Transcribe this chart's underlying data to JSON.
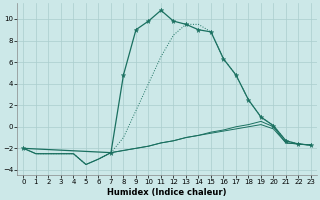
{
  "xlabel": "Humidex (Indice chaleur)",
  "bg_color": "#cce8e8",
  "grid_color": "#aacece",
  "line_color": "#1a7060",
  "xlim": [
    -0.5,
    23.5
  ],
  "ylim": [
    -4.5,
    11.5
  ],
  "xticks": [
    0,
    1,
    2,
    3,
    4,
    5,
    6,
    7,
    8,
    9,
    10,
    11,
    12,
    13,
    14,
    15,
    16,
    17,
    18,
    19,
    20,
    21,
    22,
    23
  ],
  "yticks": [
    -4,
    -2,
    0,
    2,
    4,
    6,
    8,
    10
  ],
  "series_main_x": [
    0,
    1,
    2,
    3,
    4,
    5,
    6,
    7,
    8,
    9,
    10,
    11,
    12,
    13,
    14,
    15,
    16,
    17,
    18,
    19,
    20,
    21,
    22,
    23
  ],
  "series_main_y": [
    -2,
    -2.5,
    -2.5,
    -2.5,
    -2.5,
    -3.5,
    -3.0,
    -2.4,
    -2.2,
    -2.0,
    -1.8,
    -1.5,
    -1.3,
    -1.0,
    -0.8,
    -0.6,
    -0.4,
    -0.2,
    0.0,
    0.2,
    -0.2,
    -1.5,
    -1.6,
    -1.7
  ],
  "series_dot_x": [
    0,
    1,
    2,
    3,
    4,
    5,
    6,
    7,
    8,
    9,
    10,
    11,
    12,
    13,
    14,
    15,
    16,
    17,
    18,
    19,
    20,
    21,
    22,
    23
  ],
  "series_dot_y": [
    -2,
    -2.5,
    -2.5,
    -2.5,
    -2.5,
    -3.5,
    -3.0,
    -2.4,
    -1.0,
    1.5,
    4.0,
    6.5,
    8.5,
    9.5,
    9.5,
    8.8,
    6.3,
    4.8,
    2.5,
    0.9,
    0.1,
    -1.3,
    -1.6,
    -1.7
  ],
  "series_peak_x": [
    0,
    7,
    8,
    9,
    10,
    11,
    12,
    13,
    14,
    15,
    16,
    17,
    18,
    19,
    20,
    21,
    22,
    23
  ],
  "series_peak_y": [
    -2,
    -2.4,
    4.8,
    9.0,
    9.8,
    10.8,
    9.8,
    9.5,
    9.0,
    8.8,
    6.3,
    4.8,
    2.5,
    0.9,
    0.1,
    -1.3,
    -1.6,
    -1.7
  ],
  "series_flat_x": [
    0,
    1,
    2,
    3,
    4,
    5,
    6,
    7,
    8,
    9,
    10,
    11,
    12,
    13,
    14,
    15,
    16,
    17,
    18,
    19,
    20,
    21,
    22,
    23
  ],
  "series_flat_y": [
    -2,
    -2.5,
    -2.5,
    -2.5,
    -2.5,
    -3.5,
    -3.0,
    -2.4,
    -2.2,
    -2.0,
    -1.8,
    -1.5,
    -1.3,
    -1.0,
    -0.8,
    -0.5,
    -0.3,
    -0.0,
    0.2,
    0.5,
    0.0,
    -1.5,
    -1.6,
    -1.7
  ]
}
